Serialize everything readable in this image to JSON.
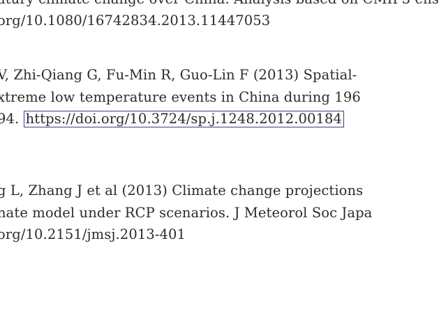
{
  "references": [
    {
      "text_line": "atury climate change over China. Analysis based on CMIP3 ens",
      "doi_line": "org/10.1080/16742834.2013.11447053"
    },
    {
      "authors_line": "V, Zhi-Qiang G, Fu-Min R, Guo-Lin F (2013) Spatial-",
      "title_line": "xtreme low temperature events in China during 196",
      "year_prefix": "94. ",
      "doi_link": "https://doi.org/10.3724/sp.j.1248.2012.00184"
    },
    {
      "authors_line": "g L, Zhang J et al (2013) Climate change projections",
      "title_line": "nate model under RCP scenarios. J Meteorol Soc Japa",
      "doi_line": "org/10.2151/jmsj.2013-401"
    }
  ]
}
